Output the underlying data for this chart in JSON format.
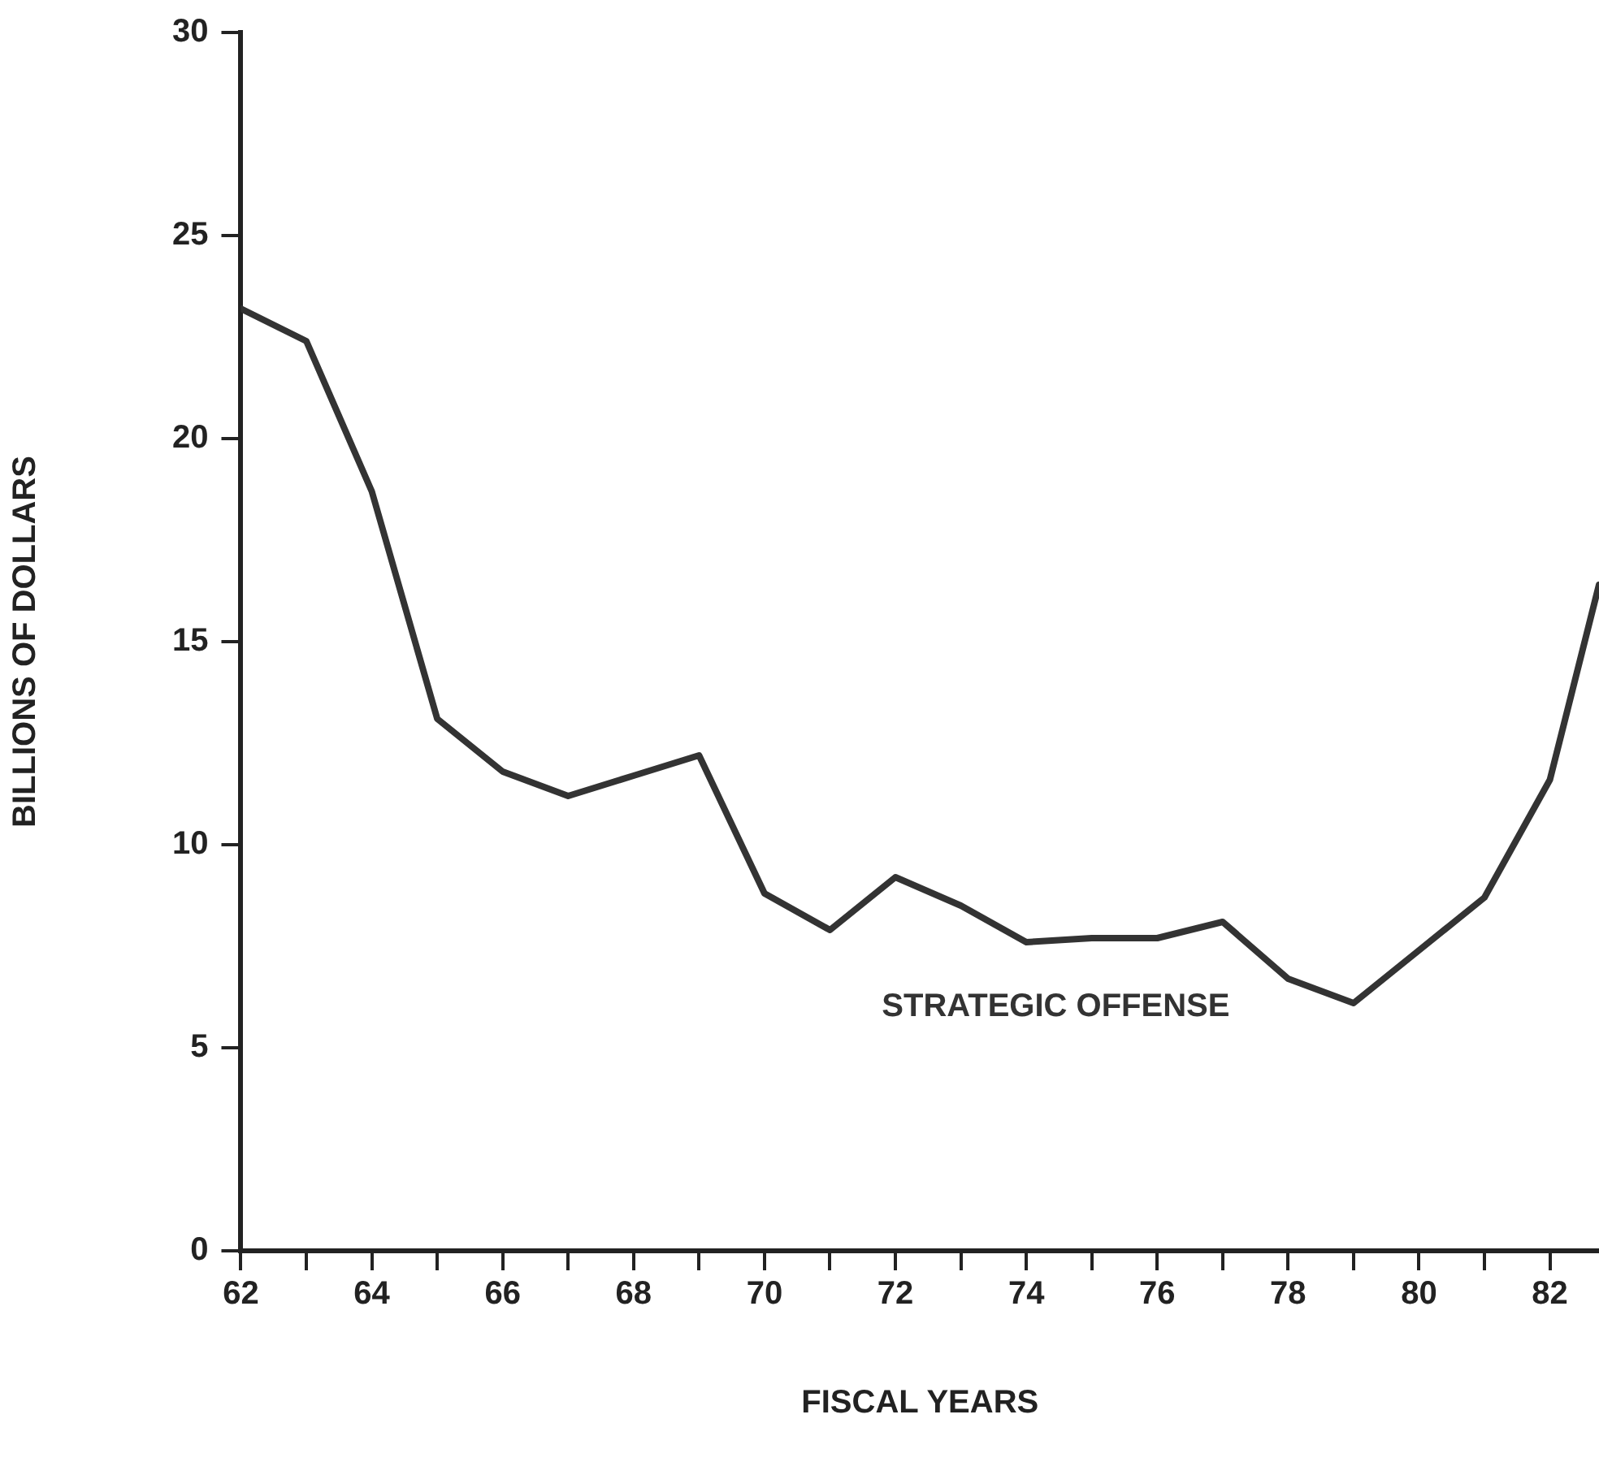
{
  "chart_data": {
    "type": "line",
    "xlabel": "FISCAL YEARS",
    "ylabel": "BILLIONS OF DOLLARS",
    "x": [
      62,
      63,
      64,
      65,
      66,
      67,
      68,
      69,
      70,
      71,
      72,
      73,
      74,
      75,
      76,
      77,
      78,
      79,
      80,
      81,
      82,
      82.75
    ],
    "series": [
      {
        "name": "STRATEGIC OFFENSE",
        "color": "#333333",
        "values": [
          23.2,
          22.4,
          18.7,
          13.1,
          11.8,
          11.2,
          11.7,
          12.2,
          8.8,
          7.9,
          9.2,
          8.5,
          7.6,
          7.7,
          7.7,
          8.1,
          6.7,
          6.1,
          7.4,
          8.7,
          11.6,
          16.4
        ]
      }
    ],
    "xlim": [
      62,
      82.75
    ],
    "xticks": [
      62,
      {
        "value": 63,
        "label": null
      },
      64,
      {
        "value": 65,
        "label": null
      },
      66,
      {
        "value": 67,
        "label": null
      },
      68,
      {
        "value": 69,
        "label": null
      },
      70,
      {
        "value": 71,
        "label": null
      },
      72,
      {
        "value": 73,
        "label": null
      },
      74,
      {
        "value": 75,
        "label": null
      },
      76,
      {
        "value": 77,
        "label": null
      },
      78,
      {
        "value": 79,
        "label": null
      },
      80,
      {
        "value": 81,
        "label": null
      },
      82
    ],
    "ylim": [
      0,
      30
    ],
    "yticks": [
      0,
      5,
      10,
      15,
      20,
      25,
      30
    ],
    "grid": false,
    "legend": false,
    "marker": "none",
    "line_style": "solid"
  }
}
